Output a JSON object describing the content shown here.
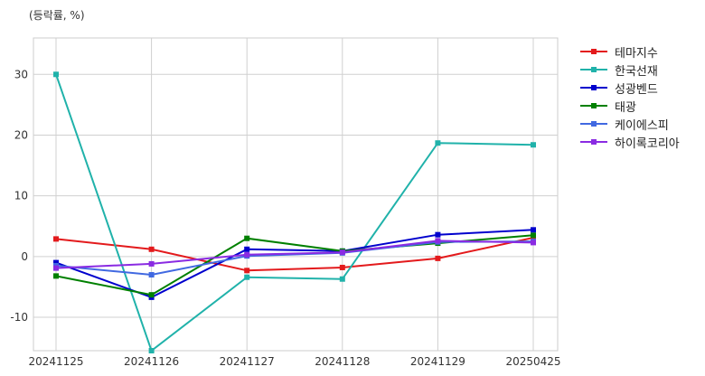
{
  "unit_label": "(등락률, %)",
  "chart_data": {
    "type": "line",
    "categories": [
      "20241125",
      "20241126",
      "20241127",
      "20241128",
      "20241129",
      "20250425"
    ],
    "ylim": [
      -15.5,
      36
    ],
    "yticks": [
      -10,
      0,
      10,
      20,
      30
    ],
    "grid": true,
    "legend_position": "right",
    "series": [
      {
        "name": "테마지수",
        "color": "#e31a1c",
        "values": [
          2.9,
          1.2,
          -2.3,
          -1.8,
          -0.3,
          3.1
        ]
      },
      {
        "name": "한국선재",
        "color": "#20b2aa",
        "values": [
          30.0,
          -15.5,
          -3.4,
          -3.7,
          18.7,
          18.4
        ]
      },
      {
        "name": "성광벤드",
        "color": "#0000cd",
        "values": [
          -1.0,
          -6.7,
          1.2,
          0.9,
          3.6,
          4.4
        ]
      },
      {
        "name": "태광",
        "color": "#008000",
        "values": [
          -3.2,
          -6.3,
          3.0,
          0.9,
          2.2,
          3.5
        ]
      },
      {
        "name": "케이에스피",
        "color": "#4169e1",
        "values": [
          -1.5,
          -3.0,
          0.1,
          0.6,
          2.4,
          2.5
        ]
      },
      {
        "name": "하이록코리아",
        "color": "#8a2be2",
        "values": [
          -1.9,
          -1.2,
          0.3,
          0.7,
          2.6,
          2.3
        ]
      }
    ]
  }
}
